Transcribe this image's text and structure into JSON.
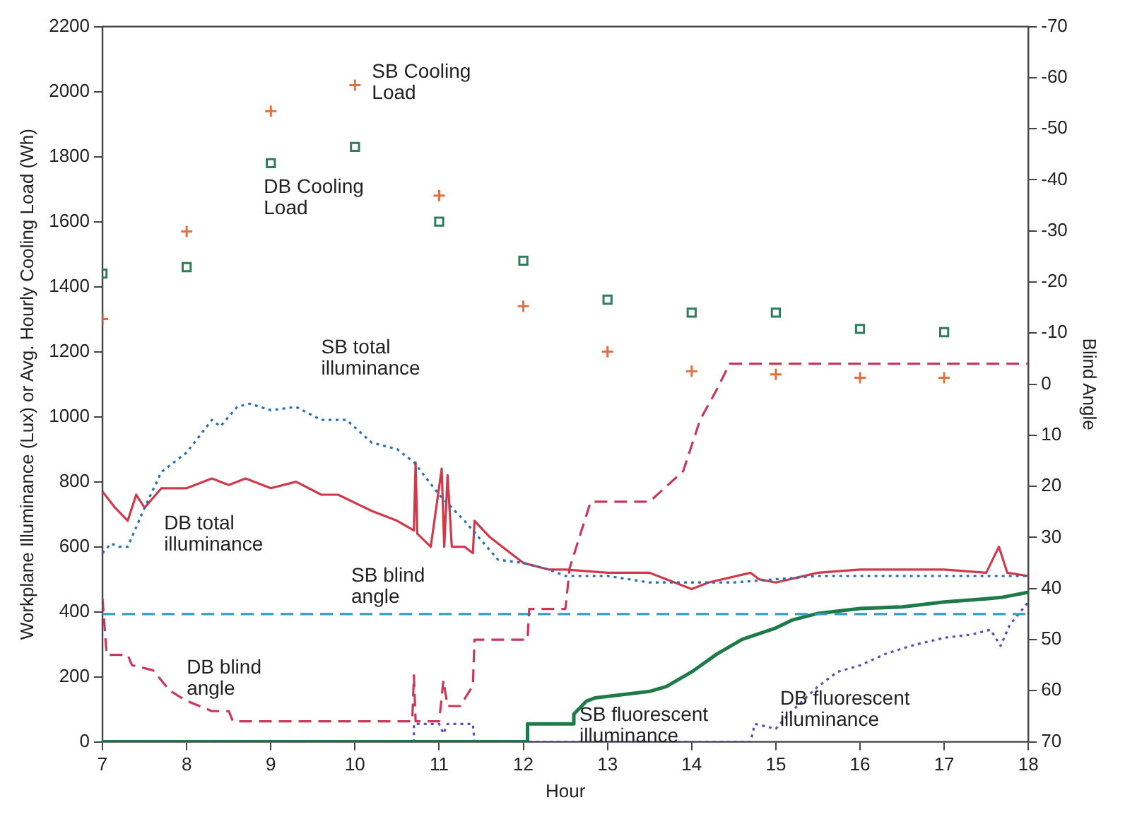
{
  "chart_data": {
    "type": "line",
    "xlabel": "Hour",
    "ylabel": "Workplane Illuminance (Lux) or Avg. Hourly Cooling Load (Wh)",
    "y2label": "Blind Angle",
    "xlim": [
      7,
      18
    ],
    "xticks": [
      7,
      8,
      9,
      10,
      11,
      12,
      13,
      14,
      15,
      16,
      17,
      18
    ],
    "ylim": [
      0,
      2200
    ],
    "yticks": [
      0,
      200,
      400,
      600,
      800,
      1000,
      1200,
      1400,
      1600,
      1800,
      2000,
      2200
    ],
    "y2lim": [
      70,
      -70
    ],
    "y2ticks": [
      -70,
      -60,
      -50,
      -40,
      -30,
      -20,
      -10,
      0,
      10,
      20,
      30,
      40,
      50,
      60,
      70
    ],
    "grid": false,
    "legend": false,
    "series": [
      {
        "type": "scatter",
        "name": "SB Cooling Load",
        "marker": "cross",
        "color": "#e0703f",
        "x": [
          7,
          8,
          9,
          10,
          11,
          12,
          13,
          14,
          15,
          16,
          17
        ],
        "values": [
          1300,
          1570,
          1940,
          2020,
          1680,
          1340,
          1200,
          1140,
          1130,
          1120,
          1120
        ]
      },
      {
        "type": "scatter",
        "name": "DB Cooling Load",
        "marker": "square",
        "color": "#2e7d5b",
        "x": [
          7,
          8,
          9,
          10,
          11,
          12,
          13,
          14,
          15,
          16,
          17
        ],
        "values": [
          1440,
          1460,
          1780,
          1830,
          1600,
          1480,
          1360,
          1320,
          1320,
          1270,
          1260
        ]
      },
      {
        "type": "line",
        "name": "SB total illuminance",
        "marker": "none",
        "line_style": "dotted",
        "color": "#2a6fb5",
        "x": [
          7,
          7.1,
          7.2,
          7.3,
          7.5,
          7.7,
          8,
          8.3,
          8.4,
          8.6,
          8.75,
          9,
          9.3,
          9.6,
          9.9,
          10.2,
          10.5,
          10.7,
          11,
          11.3,
          11.5,
          11.7,
          12,
          12.3,
          12.5,
          13,
          13.5,
          14,
          14.5,
          15,
          15.5,
          16,
          17,
          17.6,
          18
        ],
        "values": [
          580,
          610,
          600,
          600,
          720,
          830,
          890,
          990,
          970,
          1030,
          1040,
          1020,
          1030,
          990,
          990,
          920,
          900,
          860,
          760,
          680,
          620,
          560,
          550,
          530,
          510,
          510,
          490,
          490,
          490,
          500,
          510,
          510,
          510,
          510,
          510
        ]
      },
      {
        "type": "line",
        "name": "DB total illuminance",
        "marker": "none",
        "line_style": "solid",
        "color": "#d0394a",
        "x": [
          7,
          7.15,
          7.3,
          7.4,
          7.5,
          7.7,
          8,
          8.3,
          8.5,
          8.7,
          9,
          9.3,
          9.6,
          9.8,
          10.2,
          10.5,
          10.7,
          10.72,
          10.74,
          10.9,
          11.03,
          11.06,
          11.1,
          11.15,
          11.3,
          11.4,
          11.42,
          11.6,
          11.8,
          12,
          12.3,
          12.5,
          13,
          13.5,
          14,
          14.2,
          14.7,
          14.8,
          15,
          15.5,
          16,
          17,
          17.5,
          17.65,
          17.75,
          18
        ],
        "values": [
          770,
          720,
          680,
          760,
          720,
          780,
          780,
          810,
          790,
          810,
          780,
          800,
          760,
          760,
          710,
          680,
          650,
          860,
          640,
          600,
          840,
          600,
          820,
          600,
          600,
          580,
          680,
          630,
          590,
          550,
          530,
          530,
          520,
          520,
          470,
          490,
          520,
          500,
          490,
          520,
          530,
          530,
          520,
          600,
          520,
          510
        ]
      },
      {
        "type": "line",
        "name": "DB blind angle",
        "axis": "y2",
        "marker": "none",
        "line_style": "dashed",
        "color": "#c8385a",
        "x": [
          7,
          7.05,
          7.3,
          7.35,
          7.6,
          7.8,
          8,
          8.3,
          8.5,
          8.55,
          10.68,
          10.7,
          10.72,
          11,
          11.05,
          11.1,
          11.25,
          11.4,
          11.42,
          12.05,
          12.07,
          12.5,
          12.55,
          12.8,
          13.5,
          13.9,
          14.1,
          14.3,
          14.45,
          18
        ],
        "values": [
          42,
          53,
          53,
          55,
          56,
          60,
          62,
          64,
          64,
          66,
          66,
          57,
          66,
          66,
          58,
          63,
          63,
          59,
          50,
          50,
          44,
          44,
          36,
          23,
          23,
          17,
          7,
          1,
          -4,
          -4
        ]
      },
      {
        "type": "line",
        "name": "SB blind angle",
        "axis": "y2",
        "marker": "none",
        "line_style": "dashed",
        "color": "#3a9bc0",
        "x": [
          7,
          18
        ],
        "values": [
          45,
          45
        ]
      },
      {
        "type": "line",
        "name": "SB fluorescent illuminance",
        "marker": "none",
        "line_style": "solid",
        "color": "#1f7a4a",
        "x": [
          7,
          12.05,
          12.05,
          12.6,
          12.6,
          12.75,
          12.85,
          13.5,
          13.7,
          14,
          14.3,
          14.6,
          15,
          15.2,
          15.5,
          16,
          16.5,
          17,
          17.5,
          17.7,
          18
        ],
        "values": [
          0,
          0,
          55,
          55,
          85,
          125,
          135,
          155,
          170,
          215,
          270,
          315,
          350,
          375,
          395,
          410,
          415,
          430,
          440,
          445,
          460
        ]
      },
      {
        "type": "line",
        "name": "DB fluorescent illuminance",
        "marker": "none",
        "line_style": "dotted",
        "color": "#5a4fb0",
        "x": [
          7,
          10.7,
          10.7,
          11,
          11.05,
          11.1,
          11.4,
          11.42,
          14.7,
          14.75,
          15,
          15.15,
          15.5,
          15.73,
          16,
          16.3,
          16.6,
          17,
          17.33,
          17.55,
          17.67,
          17.78,
          18
        ],
        "values": [
          0,
          0,
          55,
          55,
          25,
          55,
          55,
          0,
          0,
          55,
          40,
          85,
          170,
          215,
          235,
          270,
          295,
          320,
          330,
          345,
          295,
          360,
          430
        ]
      }
    ]
  }
}
